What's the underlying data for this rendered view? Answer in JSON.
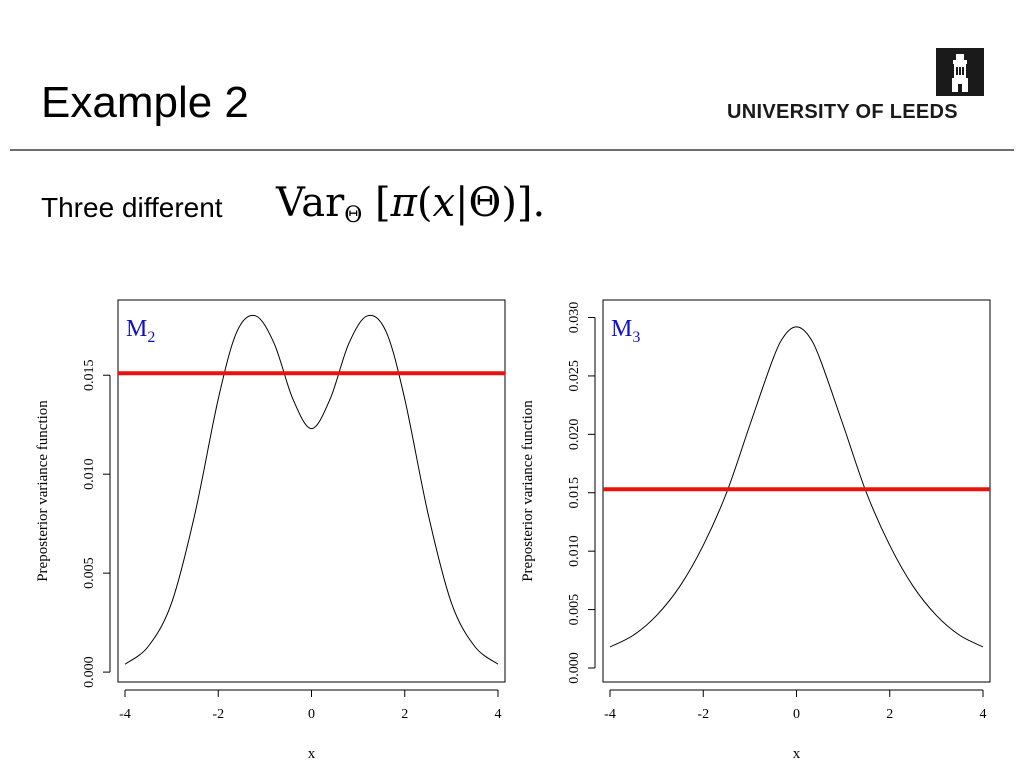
{
  "slide": {
    "title": "Example 2",
    "subtitle": "Three different",
    "math": {
      "func": "Var",
      "sub": "Θ",
      "lb": "[",
      "pi": "π",
      "lp": "(",
      "x": "x",
      "bar": "|",
      "theta": "Θ",
      "rp": ")",
      "rb": "]",
      "dot": "."
    }
  },
  "logo": {
    "text": "UNIVERSITY OF LEEDS"
  },
  "colors": {
    "curve": "#000000",
    "hline": "#e8130f",
    "label": "#1010c8",
    "axis": "#000000"
  },
  "chart_data": [
    {
      "type": "line",
      "panel_label": "M",
      "panel_label_sub": "2",
      "xlabel": "x",
      "ylabel": "Preposterior variance function",
      "xlim": [
        -4.15,
        4.15
      ],
      "ylim": [
        -0.0005,
        0.0188
      ],
      "xticks": [
        -4,
        -2,
        0,
        2,
        4
      ],
      "xtick_labels": [
        "-4",
        "-2",
        "0",
        "2",
        "4"
      ],
      "yticks": [
        0,
        0.005,
        0.01,
        0.015
      ],
      "ytick_labels": [
        "0.000",
        "0.005",
        "0.010",
        "0.015"
      ],
      "hline": 0.0151,
      "series": [
        {
          "name": "variance",
          "x": [
            -4.0,
            -3.5,
            -3.0,
            -2.5,
            -2.0,
            -1.6,
            -1.2,
            -0.8,
            -0.4,
            0.0,
            0.4,
            0.8,
            1.2,
            1.6,
            2.0,
            2.5,
            3.0,
            3.5,
            4.0
          ],
          "y": [
            0.0004,
            0.0013,
            0.0035,
            0.008,
            0.0138,
            0.0172,
            0.018,
            0.0166,
            0.0138,
            0.0123,
            0.0138,
            0.0166,
            0.018,
            0.0172,
            0.0138,
            0.008,
            0.0035,
            0.0013,
            0.0004
          ]
        }
      ]
    },
    {
      "type": "line",
      "panel_label": "M",
      "panel_label_sub": "3",
      "xlabel": "x",
      "ylabel": "Preposterior variance function",
      "xlim": [
        -4.15,
        4.15
      ],
      "ylim": [
        -0.0012,
        0.0315
      ],
      "xticks": [
        -4,
        -2,
        0,
        2,
        4
      ],
      "xtick_labels": [
        "-4",
        "-2",
        "0",
        "2",
        "4"
      ],
      "yticks": [
        0,
        0.005,
        0.01,
        0.015,
        0.02,
        0.025,
        0.03
      ],
      "ytick_labels": [
        "0.000",
        "0.005",
        "0.010",
        "0.015",
        "0.020",
        "0.025",
        "0.030"
      ],
      "hline": 0.0153,
      "series": [
        {
          "name": "variance",
          "x": [
            -4.0,
            -3.5,
            -3.0,
            -2.5,
            -2.0,
            -1.5,
            -1.0,
            -0.5,
            -0.25,
            0.0,
            0.25,
            0.5,
            1.0,
            1.5,
            2.0,
            2.5,
            3.0,
            3.5,
            4.0
          ],
          "y": [
            0.0018,
            0.0028,
            0.0045,
            0.007,
            0.0105,
            0.015,
            0.0208,
            0.0265,
            0.0285,
            0.0292,
            0.0285,
            0.0265,
            0.0208,
            0.015,
            0.0105,
            0.007,
            0.0045,
            0.0028,
            0.0018
          ]
        }
      ]
    }
  ]
}
